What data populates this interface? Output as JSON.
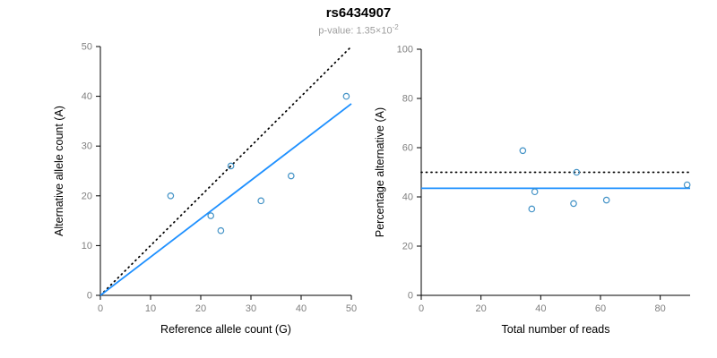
{
  "header": {
    "title": "rs6434907",
    "subtitle_main": "p-value: 1.35×10",
    "subtitle_exponent": "-2"
  },
  "colors": {
    "point": "#4292c6",
    "fit_line": "#1e90ff",
    "reference_line": "#000000",
    "tick_label": "#808080",
    "axis": "#000000",
    "subtitle": "#9e9e9e",
    "title": "#000000"
  },
  "chart_data": [
    {
      "type": "scatter",
      "xlabel": "Reference allele count (G)",
      "ylabel": "Alternative allele count (A)",
      "xlim": [
        0,
        50
      ],
      "ylim": [
        0,
        50
      ],
      "xticks": [
        0,
        10,
        20,
        30,
        40,
        50
      ],
      "yticks": [
        0,
        10,
        20,
        30,
        40,
        50
      ],
      "grid": false,
      "points": [
        [
          14,
          20
        ],
        [
          22,
          16
        ],
        [
          24,
          13
        ],
        [
          26,
          26
        ],
        [
          32,
          19
        ],
        [
          38,
          24
        ],
        [
          49,
          40
        ]
      ],
      "lines": [
        {
          "name": "identity-line",
          "role": "reference",
          "dash": "dotted",
          "color": "#000000",
          "from": [
            0,
            0
          ],
          "to": [
            50,
            50
          ]
        },
        {
          "name": "fit-line",
          "role": "fit",
          "dash": "solid",
          "color": "#1e90ff",
          "from": [
            0,
            0
          ],
          "to": [
            50,
            38.5
          ]
        }
      ]
    },
    {
      "type": "scatter",
      "xlabel": "Total number of reads",
      "ylabel": "Percentage alternative (A)",
      "xlim": [
        0,
        90
      ],
      "ylim": [
        0,
        100
      ],
      "xticks": [
        0,
        20,
        40,
        60,
        80
      ],
      "yticks": [
        0,
        20,
        40,
        60,
        80,
        100
      ],
      "grid": false,
      "points": [
        [
          34,
          58.8
        ],
        [
          38,
          42.1
        ],
        [
          37,
          35.1
        ],
        [
          52,
          50
        ],
        [
          51,
          37.3
        ],
        [
          62,
          38.7
        ],
        [
          89,
          44.9
        ]
      ],
      "lines": [
        {
          "name": "expected-line",
          "role": "reference",
          "dash": "dotted",
          "color": "#000000",
          "from": [
            0,
            50
          ],
          "to": [
            90,
            50
          ]
        },
        {
          "name": "fit-line",
          "role": "fit",
          "dash": "solid",
          "color": "#1e90ff",
          "from": [
            0,
            43.5
          ],
          "to": [
            90,
            43.5
          ]
        }
      ]
    }
  ]
}
